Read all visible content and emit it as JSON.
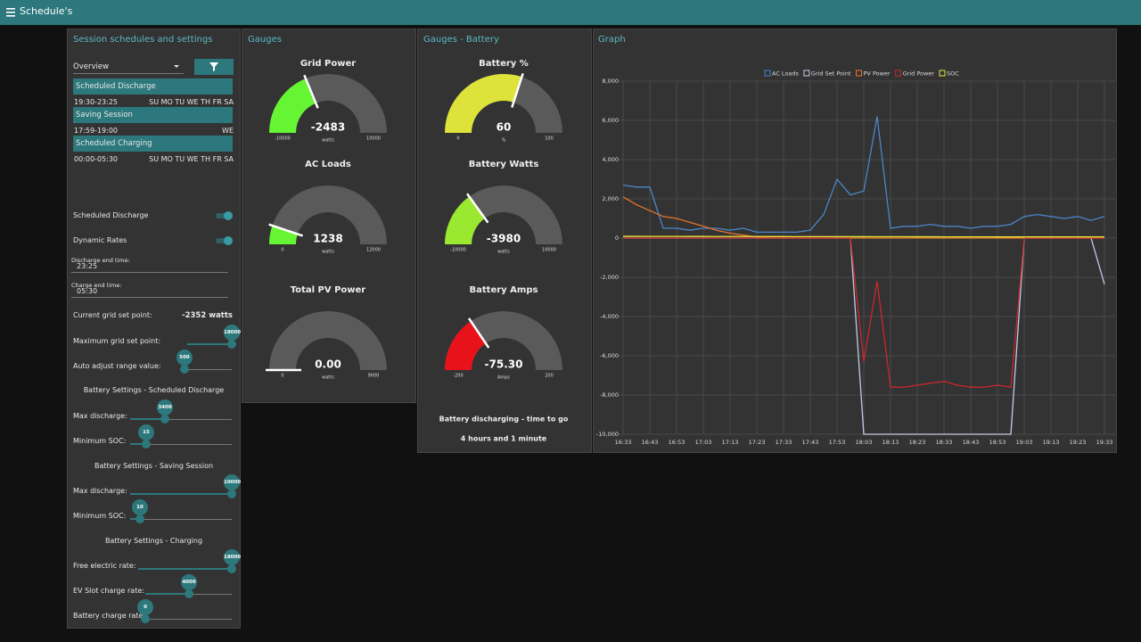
{
  "header": {
    "title": "Schedule's"
  },
  "session": {
    "title": "Session schedules and settings",
    "dropdown": "Overview",
    "schedules": [
      {
        "name": "Scheduled Discharge",
        "time": "19:30-23:25",
        "days": "SU MO TU WE TH FR SA"
      },
      {
        "name": "Saving Session",
        "time": "17:59-19:00",
        "days": "WE"
      },
      {
        "name": "Scheduled Charging",
        "time": "00:00-05:30",
        "days": "SU MO TU WE TH FR SA"
      }
    ],
    "toggles": [
      "Scheduled Discharge",
      "Dynamic Rates"
    ],
    "inputs": [
      {
        "label": "Discharge end time:",
        "value": "23:25"
      },
      {
        "label": "Charge end time:",
        "value": "05:30"
      }
    ],
    "grid_set_point": {
      "label": "Current grid set point:",
      "value": "-2352 watts"
    },
    "sliders": [
      {
        "label": "Maximum grid set point:",
        "value": 18000
      },
      {
        "label": "Auto adjust range value:",
        "value": 500
      }
    ],
    "sections": [
      {
        "heading": "Battery Settings - Scheduled Discharge",
        "sliders": [
          {
            "label": "Max discharge:",
            "value": 3400
          },
          {
            "label": "Minimum SOC:",
            "value": 15
          }
        ]
      },
      {
        "heading": "Battery Settings - Saving Session",
        "sliders": [
          {
            "label": "Max discharge:",
            "value": 10000
          },
          {
            "label": "Minimum SOC:",
            "value": 10
          }
        ]
      },
      {
        "heading": "Battery Settings - Charging",
        "sliders": [
          {
            "label": "Free electric rate:",
            "value": 18000
          },
          {
            "label": "EV Slot charge rate:",
            "value": 4000
          },
          {
            "label": "Battery charge rate:",
            "value": 0
          }
        ]
      }
    ]
  },
  "gauges": {
    "title": "Gauges",
    "items": [
      {
        "title": "Grid Power",
        "value": -2483,
        "min": -10000,
        "max": 10000,
        "unit": "watts",
        "color": "#66f533"
      },
      {
        "title": "AC Loads",
        "value": 1238,
        "min": 0,
        "max": 12000,
        "unit": "watts",
        "color": "#66f533"
      },
      {
        "title": "Total PV Power",
        "value": 0,
        "value_label": "0.00",
        "min": 0,
        "max": 9000,
        "unit": "watts",
        "color": "#66f533"
      }
    ]
  },
  "battery": {
    "title": "Gauges - Battery",
    "items": [
      {
        "title": "Battery %",
        "value": 60,
        "min": 0,
        "max": 100,
        "unit": "%",
        "color": "#dde33a"
      },
      {
        "title": "Battery Watts",
        "value": -3980,
        "min": -10000,
        "max": 10000,
        "unit": "watts",
        "color": "#9be830"
      },
      {
        "title": "Battery Amps",
        "value": -75.3,
        "value_label": "-75.30",
        "min": -200,
        "max": 200,
        "unit": "Amps",
        "color": "#e8121a"
      }
    ],
    "status": [
      "Battery discharging - time to go",
      "4 hours and 1 minute"
    ]
  },
  "chart_data": {
    "type": "line",
    "title": "Graph",
    "legend": "top",
    "grid": true,
    "categories": [
      "16:33",
      null,
      "16:43",
      null,
      "16:53",
      null,
      "17:03",
      null,
      "17:13",
      null,
      "17:23",
      null,
      "17:33",
      null,
      "17:43",
      null,
      "17:53",
      null,
      "18:03",
      null,
      "18:13",
      null,
      "18:23",
      null,
      "18:33",
      null,
      "18:43",
      null,
      "18:53",
      null,
      "19:03",
      null,
      "19:13",
      null,
      "19:23",
      null,
      "19:33"
    ],
    "ylim": [
      -10000,
      8000
    ],
    "yticks": [
      {
        "value": -10000,
        "label": "-10,000"
      },
      {
        "value": -8000,
        "label": "-8,000"
      },
      {
        "value": -6000,
        "label": "-6,000"
      },
      {
        "value": -4000,
        "label": "-4,000"
      },
      {
        "value": -2000,
        "label": "-2,000"
      },
      0,
      {
        "value": 2000,
        "label": "2,000"
      },
      {
        "value": 4000,
        "label": "4,000"
      },
      {
        "value": 6000,
        "label": "6,000"
      },
      {
        "value": 8000,
        "label": "8,000"
      }
    ],
    "series": [
      {
        "name": "AC Loads",
        "color": "#4a86c8",
        "values": [
          2700,
          2600,
          2600,
          500,
          500,
          400,
          500,
          500,
          400,
          500,
          300,
          300,
          300,
          300,
          400,
          1200,
          3000,
          2200,
          2400,
          6200,
          500,
          600,
          600,
          700,
          600,
          600,
          500,
          600,
          600,
          700,
          1100,
          1200,
          1100,
          1000,
          1100,
          900,
          1100
        ]
      },
      {
        "name": "Grid Set Point",
        "color": "#c4cbe8",
        "values": [
          0,
          0,
          0,
          0,
          0,
          0,
          0,
          0,
          0,
          0,
          0,
          0,
          0,
          0,
          0,
          0,
          0,
          0,
          -10000,
          -10000,
          -10000,
          -10000,
          -10000,
          -10000,
          -10000,
          -10000,
          -10000,
          -10000,
          -10000,
          -10000,
          0,
          0,
          0,
          0,
          0,
          0,
          -2352
        ]
      },
      {
        "name": "PV Power",
        "color": "#e8742a",
        "values": [
          2100,
          1700,
          1400,
          1100,
          1000,
          800,
          600,
          400,
          250,
          150,
          50,
          0,
          0,
          0,
          0,
          0,
          0,
          0,
          0,
          0,
          0,
          0,
          0,
          0,
          0,
          0,
          0,
          0,
          0,
          0,
          0,
          0,
          0,
          0,
          0,
          0,
          0
        ]
      },
      {
        "name": "Grid Power",
        "color": "#c8282a",
        "values": [
          0,
          0,
          0,
          0,
          0,
          0,
          0,
          0,
          0,
          0,
          0,
          0,
          0,
          0,
          0,
          0,
          0,
          0,
          -6300,
          -2200,
          -7600,
          -7600,
          -7500,
          -7400,
          -7300,
          -7500,
          -7600,
          -7600,
          -7500,
          -7600,
          0,
          0,
          0,
          0,
          0,
          0,
          0
        ]
      },
      {
        "name": "SOC",
        "color": "#e8e83a",
        "values": [
          88,
          87,
          86,
          85,
          84,
          83,
          82,
          81,
          80,
          79,
          78,
          77,
          76,
          75,
          74,
          73,
          72,
          71,
          70,
          69,
          68,
          67,
          66,
          65,
          64,
          63,
          62,
          61,
          60,
          60,
          60,
          60,
          60,
          60,
          60,
          60,
          60
        ]
      }
    ]
  }
}
